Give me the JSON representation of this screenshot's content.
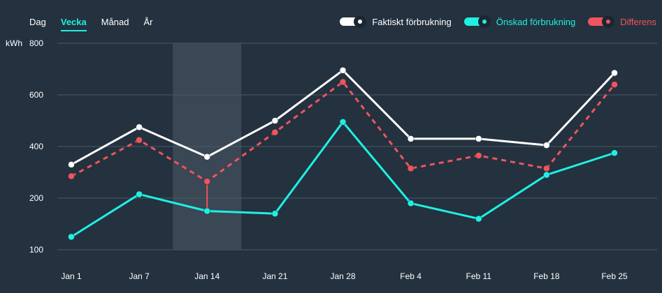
{
  "tabs": [
    {
      "label": "Dag",
      "active": false
    },
    {
      "label": "Vecka",
      "active": true
    },
    {
      "label": "Månad",
      "active": false
    },
    {
      "label": "År",
      "active": false
    }
  ],
  "legend": [
    {
      "label": "Faktiskt förbrukning",
      "color": "#ffffff"
    },
    {
      "label": "Önskad förbrukning",
      "color": "#1ef0e3"
    },
    {
      "label": "Differens",
      "color": "#f0545c"
    }
  ],
  "colors": {
    "background": "#24313f",
    "grid": "#4a5867",
    "highlight_band": "#3a4754",
    "highlight_label": "#1ef0e3"
  },
  "chart_data": {
    "type": "line",
    "ylabel": "kWh",
    "y_ticks": [
      100,
      200,
      400,
      600,
      800
    ],
    "ylim": [
      100,
      800
    ],
    "categories": [
      "Jan 1",
      "Jan 7",
      "Jan 14",
      "Jan 21",
      "Jan 28",
      "Feb 4",
      "Feb 11",
      "Feb 18",
      "Feb 25"
    ],
    "highlighted_category": "Jan 14",
    "grid": true,
    "legend_position": "top-right",
    "series": [
      {
        "name": "Faktiskt förbrukning",
        "color": "#ffffff",
        "style": "solid",
        "values": [
          330,
          475,
          360,
          500,
          695,
          430,
          430,
          405,
          685
        ]
      },
      {
        "name": "Önskad förbrukning",
        "color": "#1ef0e3",
        "style": "solid",
        "values": [
          125,
          215,
          175,
          170,
          495,
          190,
          160,
          290,
          375
        ]
      },
      {
        "name": "Differens",
        "color": "#f0545c",
        "style": "dashed",
        "values": [
          285,
          425,
          265,
          455,
          650,
          315,
          365,
          315,
          640
        ]
      }
    ]
  }
}
